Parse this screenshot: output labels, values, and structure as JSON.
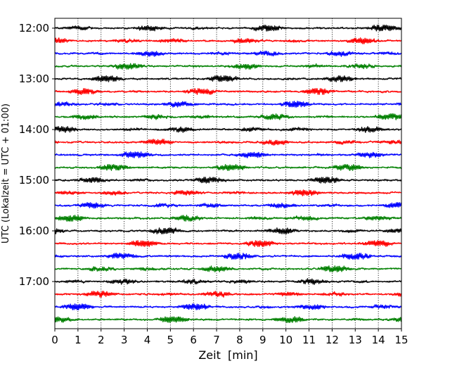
{
  "chart_data": {
    "type": "line",
    "title": "",
    "xlabel": "Zeit  [min]",
    "ylabel": "UTC (Lokalzeit = UTC + 01:00)",
    "xlim": [
      0,
      15
    ],
    "x_ticks": [
      0,
      1,
      2,
      3,
      4,
      5,
      6,
      7,
      8,
      9,
      10,
      11,
      12,
      13,
      14,
      15
    ],
    "y_ticks": [
      "12:00",
      "13:00",
      "14:00",
      "15:00",
      "16:00",
      "17:00"
    ],
    "trace_start": "12:00",
    "trace_interval_minutes": 15,
    "trace_count": 24,
    "trace_colors": [
      "#000000",
      "#ff0000",
      "#0000ff",
      "#008000"
    ],
    "grid": {
      "x": true,
      "style": "dotted",
      "color": "#000000"
    },
    "legend": "none"
  }
}
